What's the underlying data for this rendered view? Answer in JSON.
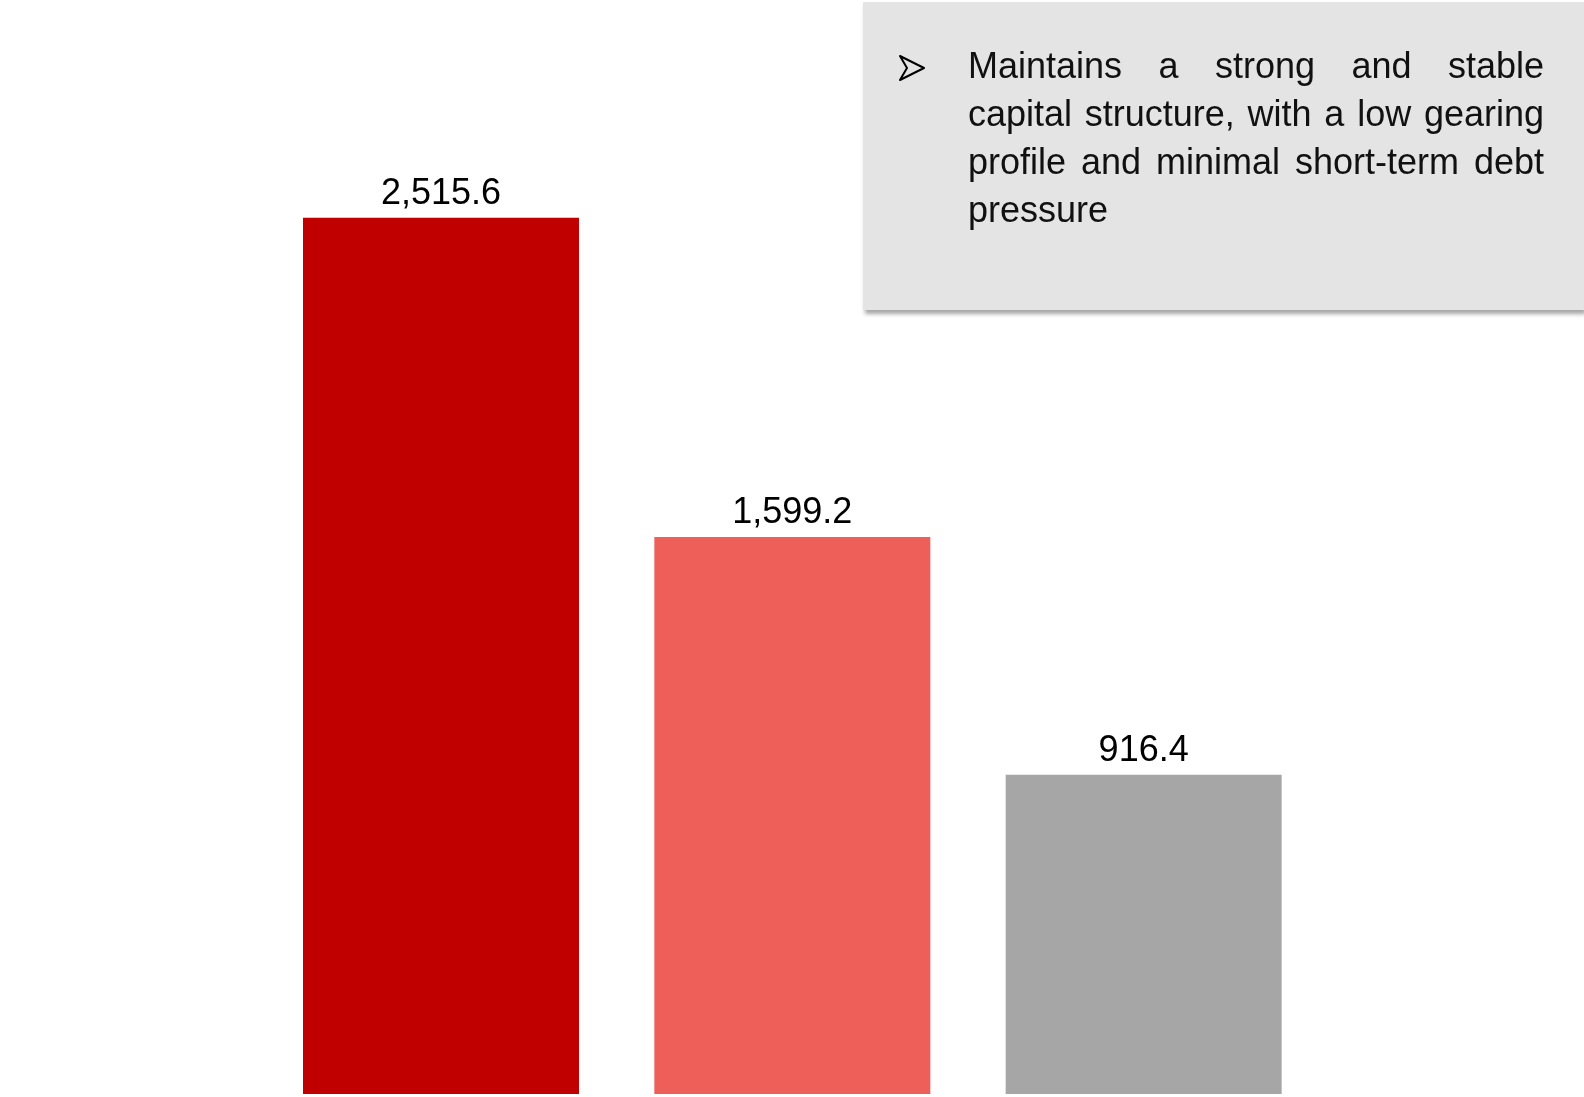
{
  "chart_data": {
    "type": "bar",
    "categories": [
      null,
      null,
      null
    ],
    "values": [
      2515.6,
      1599.2,
      916.4
    ],
    "colors": [
      "#c00000",
      "#ef5f5a",
      "#a6a6a6"
    ],
    "data_labels": true,
    "value_labels": [
      "2,515.6",
      "1,599.2",
      "916.4"
    ],
    "annotations": [
      "Maintains a strong and stable capital structure, with a low gearing profile and minimal short-term debt pressure"
    ]
  }
}
